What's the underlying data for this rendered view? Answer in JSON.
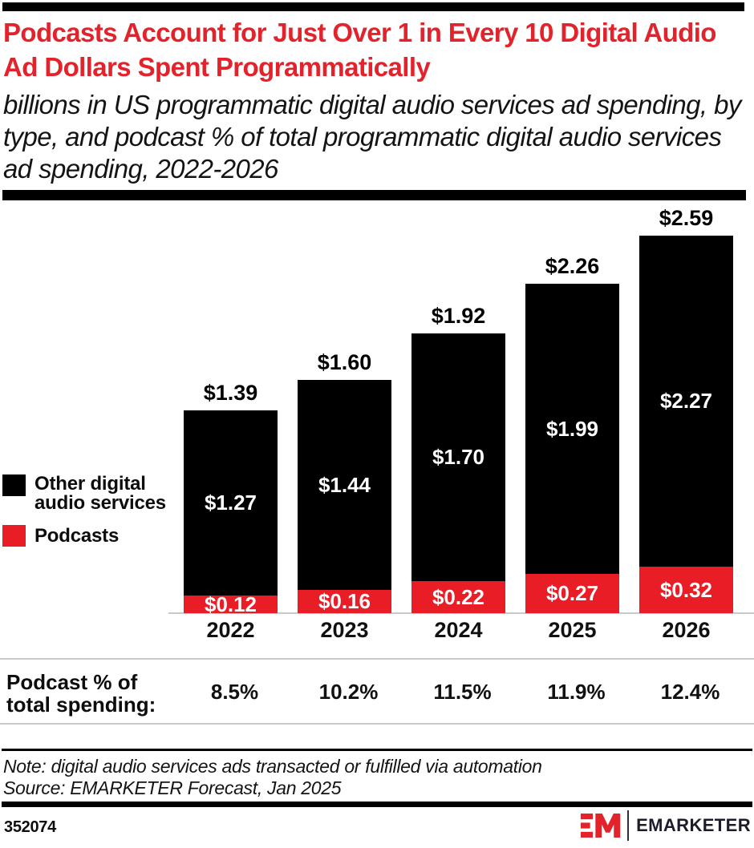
{
  "header": {
    "title": "Podcasts Account for Just Over 1 in Every 10 Digital Audio Ad Dollars Spent Programmatically",
    "subtitle": "billions in US programmatic digital audio services ad spending, by type, and podcast % of total programmatic digital audio services ad spending, 2022-2026"
  },
  "legend": {
    "items": [
      {
        "label": "Other digital audio services",
        "color": "#000000"
      },
      {
        "label": "Podcasts",
        "color": "#E91D26"
      }
    ]
  },
  "chart_data": {
    "type": "bar",
    "stacked": true,
    "categories": [
      "2022",
      "2023",
      "2024",
      "2025",
      "2026"
    ],
    "series": [
      {
        "name": "Podcasts",
        "color": "#E91D26",
        "values": [
          0.12,
          0.16,
          0.22,
          0.27,
          0.32
        ],
        "value_labels": [
          "$0.12",
          "$0.16",
          "$0.22",
          "$0.27",
          "$0.32"
        ]
      },
      {
        "name": "Other digital audio services",
        "color": "#000000",
        "values": [
          1.27,
          1.44,
          1.7,
          1.99,
          2.27
        ],
        "value_labels": [
          "$1.27",
          "$1.44",
          "$1.70",
          "$1.99",
          "$2.27"
        ]
      }
    ],
    "totals": [
      1.39,
      1.6,
      1.92,
      2.26,
      2.59
    ],
    "total_labels": [
      "$1.39",
      "$1.60",
      "$1.92",
      "$2.26",
      "$2.59"
    ],
    "unit": "billions of US dollars",
    "ylim": [
      0,
      2.85
    ],
    "grid": false,
    "legend_position": "left"
  },
  "percent_row": {
    "label": "Podcast % of total spending:",
    "values": [
      "8.5%",
      "10.2%",
      "11.5%",
      "11.9%",
      "12.4%"
    ]
  },
  "footnote": {
    "note": "Note: digital audio services ads transacted or fulfilled via automation",
    "source": "Source: EMARKETER Forecast, Jan 2025"
  },
  "footer": {
    "chart_id": "352074",
    "wordmark": "EMARKETER"
  },
  "colors": {
    "title_red": "#E3232B",
    "podcast_red": "#E91D26",
    "other_black": "#000000",
    "divider_gray": "#C9C9C9",
    "wordmark_dark": "#1C1C2B"
  }
}
